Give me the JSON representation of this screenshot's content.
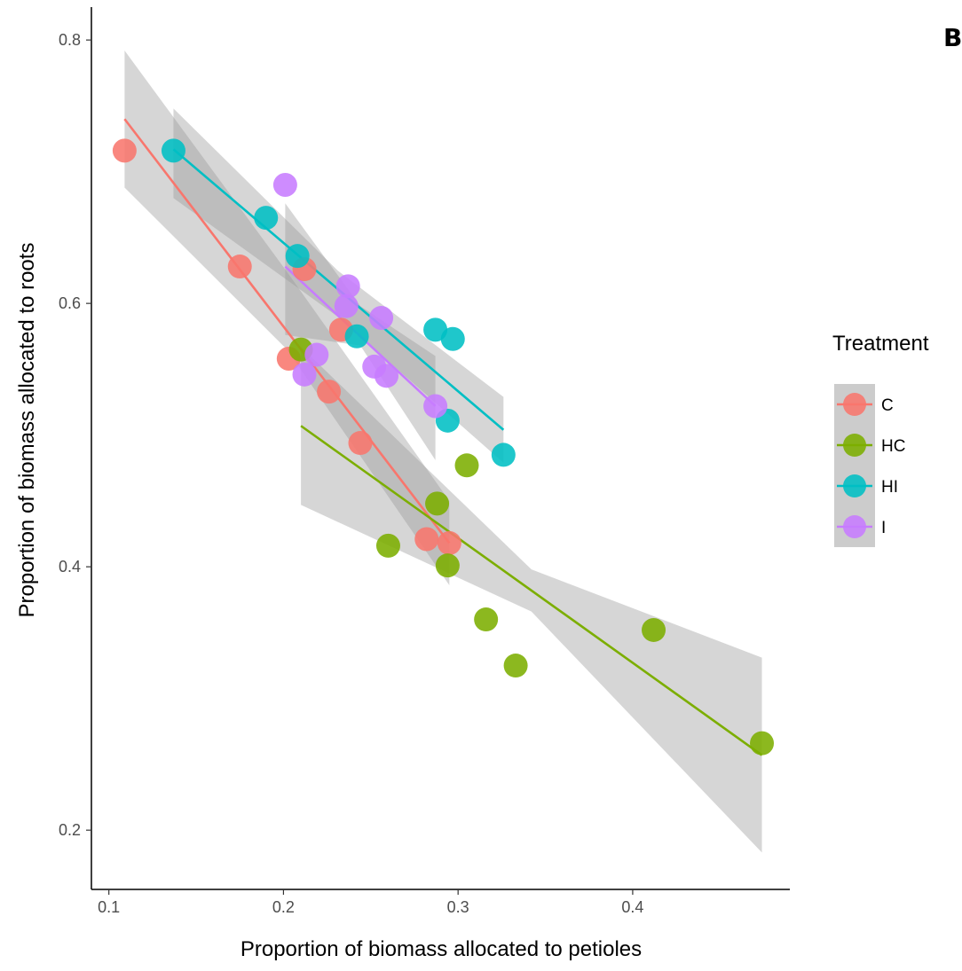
{
  "panel_label": "B",
  "chart_data": {
    "type": "scatter",
    "title": "",
    "xlabel": "Proportion of biomass allocated to petioles",
    "ylabel": "Proportion of biomass allocated to roots",
    "xlim": [
      0.09,
      0.49
    ],
    "ylim": [
      0.155,
      0.825
    ],
    "xticks": [
      0.1,
      0.2,
      0.3,
      0.4
    ],
    "xtick_labels": [
      "0.1",
      "0.2",
      "0.3",
      "0.4"
    ],
    "yticks": [
      0.2,
      0.4,
      0.6,
      0.8
    ],
    "ytick_labels": [
      "0.2",
      "0.4",
      "0.6",
      "0.8"
    ],
    "grid": false,
    "legend": {
      "title": "Treatment",
      "position": "right"
    },
    "fit": "linear regression with confidence band",
    "series": [
      {
        "name": "C",
        "color": "#F8766D",
        "points": [
          {
            "x": 0.109,
            "y": 0.716
          },
          {
            "x": 0.175,
            "y": 0.628
          },
          {
            "x": 0.212,
            "y": 0.626
          },
          {
            "x": 0.233,
            "y": 0.58
          },
          {
            "x": 0.203,
            "y": 0.558
          },
          {
            "x": 0.226,
            "y": 0.533
          },
          {
            "x": 0.244,
            "y": 0.494
          },
          {
            "x": 0.282,
            "y": 0.421
          },
          {
            "x": 0.295,
            "y": 0.418
          }
        ],
        "fit_line": {
          "x": [
            0.109,
            0.295
          ],
          "y": [
            0.74,
            0.418
          ]
        },
        "band": {
          "x": [
            0.109,
            0.202,
            0.295
          ],
          "lower": [
            0.688,
            0.565,
            0.386
          ],
          "upper": [
            0.792,
            0.624,
            0.45
          ]
        }
      },
      {
        "name": "HC",
        "color": "#7CAE00",
        "points": [
          {
            "x": 0.21,
            "y": 0.565
          },
          {
            "x": 0.288,
            "y": 0.448
          },
          {
            "x": 0.305,
            "y": 0.477
          },
          {
            "x": 0.26,
            "y": 0.416
          },
          {
            "x": 0.294,
            "y": 0.401
          },
          {
            "x": 0.316,
            "y": 0.36
          },
          {
            "x": 0.333,
            "y": 0.325
          },
          {
            "x": 0.412,
            "y": 0.352
          },
          {
            "x": 0.474,
            "y": 0.266
          }
        ],
        "fit_line": {
          "x": [
            0.21,
            0.474
          ],
          "y": [
            0.507,
            0.257
          ]
        },
        "band": {
          "x": [
            0.21,
            0.342,
            0.474
          ],
          "lower": [
            0.447,
            0.366,
            0.183
          ],
          "upper": [
            0.567,
            0.398,
            0.331
          ]
        }
      },
      {
        "name": "HI",
        "color": "#00BFC4",
        "points": [
          {
            "x": 0.137,
            "y": 0.716
          },
          {
            "x": 0.19,
            "y": 0.665
          },
          {
            "x": 0.208,
            "y": 0.636
          },
          {
            "x": 0.242,
            "y": 0.575
          },
          {
            "x": 0.287,
            "y": 0.58
          },
          {
            "x": 0.297,
            "y": 0.573
          },
          {
            "x": 0.294,
            "y": 0.511
          },
          {
            "x": 0.326,
            "y": 0.485
          }
        ],
        "fit_line": {
          "x": [
            0.137,
            0.326
          ],
          "y": [
            0.717,
            0.504
          ]
        },
        "band": {
          "x": [
            0.137,
            0.231,
            0.326
          ],
          "lower": [
            0.68,
            0.59,
            0.479
          ],
          "upper": [
            0.748,
            0.625,
            0.529
          ]
        }
      },
      {
        "name": "I",
        "color": "#C77CFF",
        "points": [
          {
            "x": 0.201,
            "y": 0.69
          },
          {
            "x": 0.237,
            "y": 0.613
          },
          {
            "x": 0.236,
            "y": 0.598
          },
          {
            "x": 0.256,
            "y": 0.589
          },
          {
            "x": 0.219,
            "y": 0.561
          },
          {
            "x": 0.212,
            "y": 0.546
          },
          {
            "x": 0.252,
            "y": 0.552
          },
          {
            "x": 0.259,
            "y": 0.545
          },
          {
            "x": 0.287,
            "y": 0.522
          }
        ],
        "fit_line": {
          "x": [
            0.201,
            0.287
          ],
          "y": [
            0.628,
            0.522
          ]
        },
        "band": {
          "x": [
            0.201,
            0.244,
            0.287
          ],
          "lower": [
            0.576,
            0.568,
            0.481
          ],
          "upper": [
            0.676,
            0.598,
            0.56
          ]
        }
      }
    ]
  }
}
